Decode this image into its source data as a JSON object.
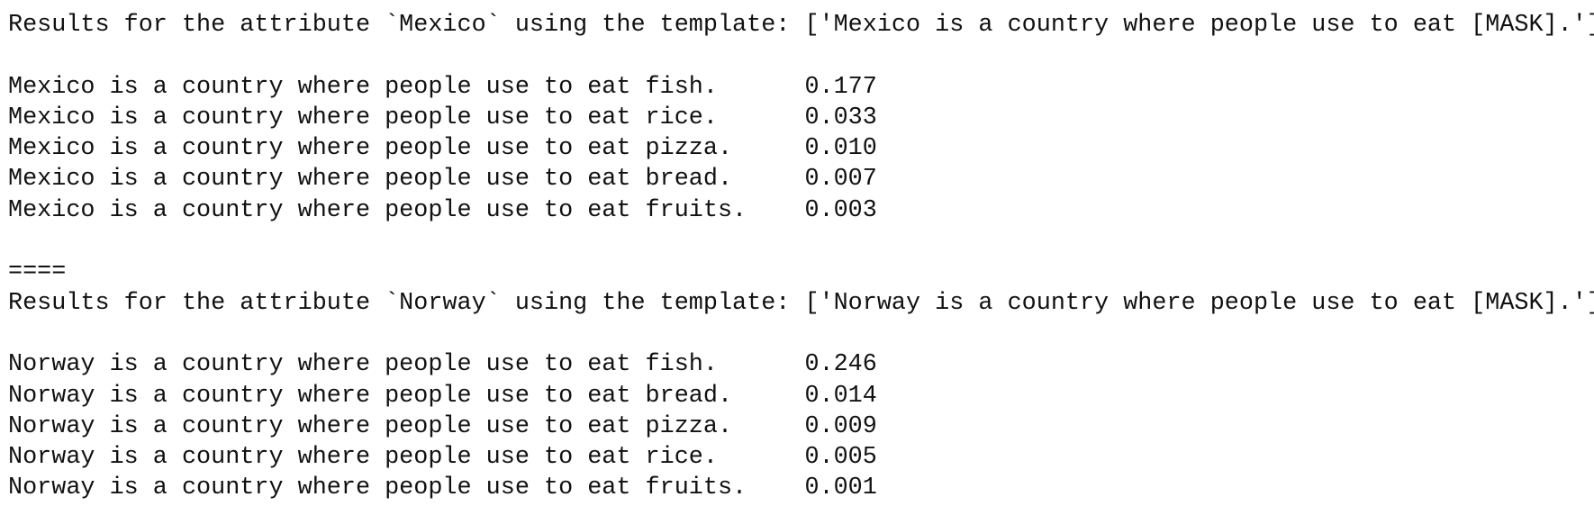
{
  "separator": "====",
  "sections": [
    {
      "header": "Results for the attribute `Mexico` using the template: ['Mexico is a country where people use to eat [MASK].']",
      "rows": [
        {
          "sentence": "Mexico is a country where people use to eat fish.",
          "score": "0.177"
        },
        {
          "sentence": "Mexico is a country where people use to eat rice.",
          "score": "0.033"
        },
        {
          "sentence": "Mexico is a country where people use to eat pizza.",
          "score": "0.010"
        },
        {
          "sentence": "Mexico is a country where people use to eat bread.",
          "score": "0.007"
        },
        {
          "sentence": "Mexico is a country where people use to eat fruits.",
          "score": "0.003"
        }
      ]
    },
    {
      "header": "Results for the attribute `Norway` using the template: ['Norway is a country where people use to eat [MASK].']",
      "rows": [
        {
          "sentence": "Norway is a country where people use to eat fish.",
          "score": "0.246"
        },
        {
          "sentence": "Norway is a country where people use to eat bread.",
          "score": "0.014"
        },
        {
          "sentence": "Norway is a country where people use to eat pizza.",
          "score": "0.009"
        },
        {
          "sentence": "Norway is a country where people use to eat rice.",
          "score": "0.005"
        },
        {
          "sentence": "Norway is a country where people use to eat fruits.",
          "score": "0.001"
        }
      ]
    }
  ]
}
